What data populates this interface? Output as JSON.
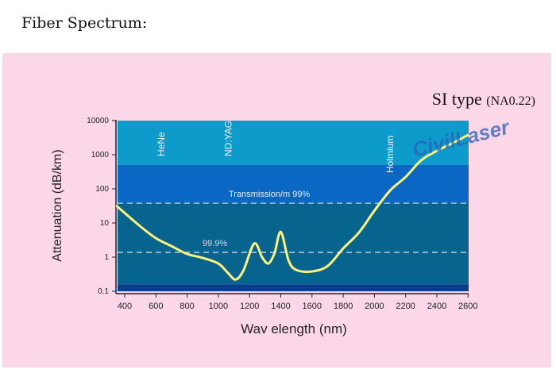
{
  "page_title": "Fiber Spectrum:",
  "chart_data": {
    "type": "line",
    "title": "SI type",
    "subtitle": "(NA0.22)",
    "xlabel": "Wav elength (nm)",
    "ylabel": "Attenuation (dB/km)",
    "x_scale": "linear",
    "y_scale": "log",
    "xlim": [
      350,
      2610
    ],
    "ylim": [
      0.1,
      10000
    ],
    "x_ticks": [
      400,
      600,
      800,
      1000,
      1200,
      1400,
      1600,
      1800,
      2000,
      2200,
      2400,
      2600
    ],
    "y_ticks": [
      10000,
      1000,
      100,
      10,
      1,
      0.1
    ],
    "y_tick_labels": [
      "10000",
      "1000",
      "100",
      "10",
      "1",
      "0.1"
    ],
    "bands": [
      {
        "from": 500,
        "to": 10000,
        "color": "#0d9bcb"
      },
      {
        "from": 38,
        "to": 500,
        "color": "#0a67c4"
      },
      {
        "from": 0.16,
        "to": 38,
        "color": "#07648f"
      },
      {
        "from": 0.1,
        "to": 0.16,
        "color": "#0a3c8c"
      }
    ],
    "reference_lines": [
      {
        "value": 38,
        "label": "Transmission/m 99%"
      },
      {
        "value": 1.38,
        "label": "99.9%"
      }
    ],
    "laser_labels": [
      {
        "x": 633,
        "label": "HeNe"
      },
      {
        "x": 1064,
        "label": "ND:YAG"
      },
      {
        "x": 2100,
        "label": "Holmium"
      }
    ],
    "series": [
      {
        "color": "#fff27a",
        "x": [
          350,
          500,
          600,
          700,
          800,
          900,
          1000,
          1060,
          1110,
          1160,
          1230,
          1280,
          1320,
          1360,
          1400,
          1450,
          1500,
          1600,
          1700,
          1800,
          1900,
          2000,
          2100,
          2200,
          2300,
          2400,
          2500,
          2600
        ],
        "y": [
          31,
          8,
          3.6,
          2.1,
          1.24,
          0.95,
          0.65,
          0.35,
          0.22,
          0.4,
          2.5,
          1.0,
          0.65,
          1.3,
          5.5,
          0.8,
          0.42,
          0.38,
          0.55,
          1.8,
          5.2,
          23,
          89,
          224,
          690,
          1300,
          2200,
          3800
        ]
      }
    ],
    "grid": false,
    "watermark": "CivilLaser"
  }
}
